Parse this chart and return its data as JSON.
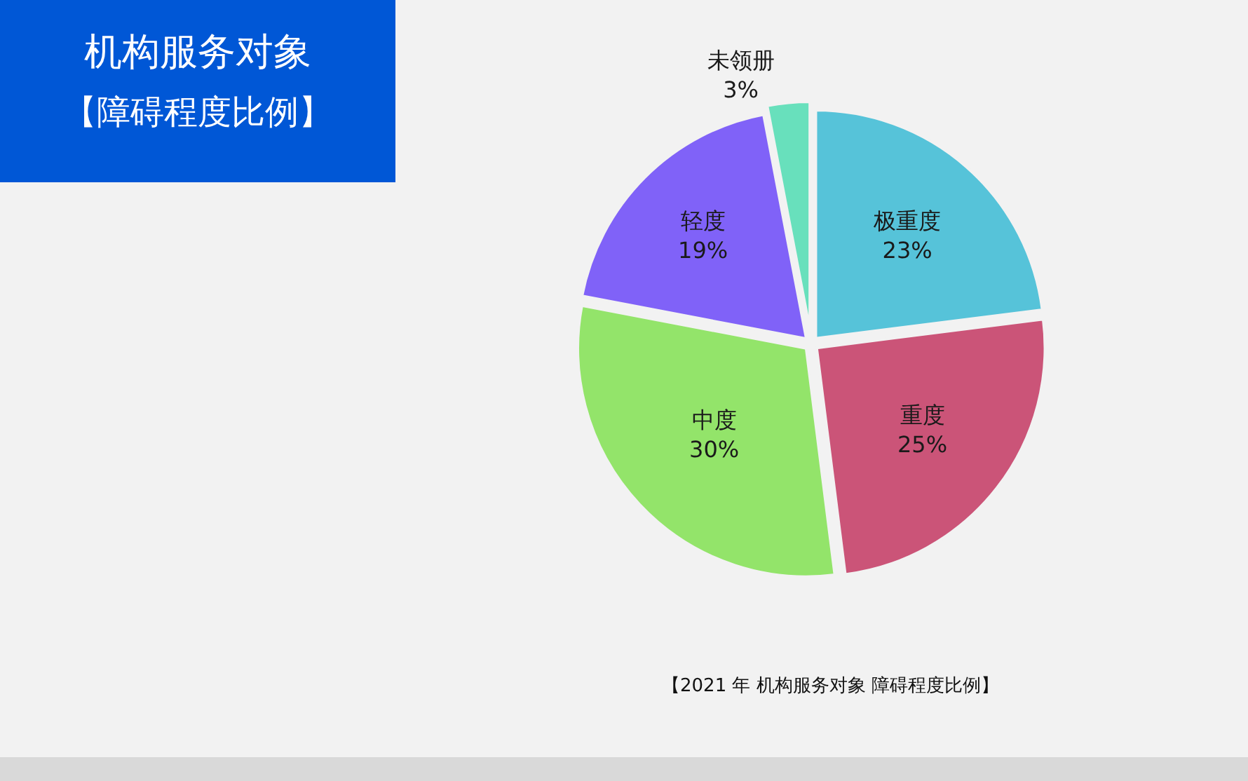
{
  "chart_data": {
    "type": "pie",
    "title": "机构服务对象",
    "subtitle": "【障碍程度比例】",
    "categories": [
      "极重度",
      "重度",
      "中度",
      "轻度",
      "未领册"
    ],
    "values": [
      23,
      25,
      30,
      19,
      3
    ],
    "value_labels": [
      "23%",
      "25%",
      "30%",
      "19%",
      "3%"
    ],
    "colors": [
      "#56c3d9",
      "#cb5478",
      "#93e46a",
      "#8062f8",
      "#68e0bc"
    ],
    "legend": false,
    "annotations": [
      "【2021 年 机构服务对象 障碍程度比例】"
    ]
  }
}
